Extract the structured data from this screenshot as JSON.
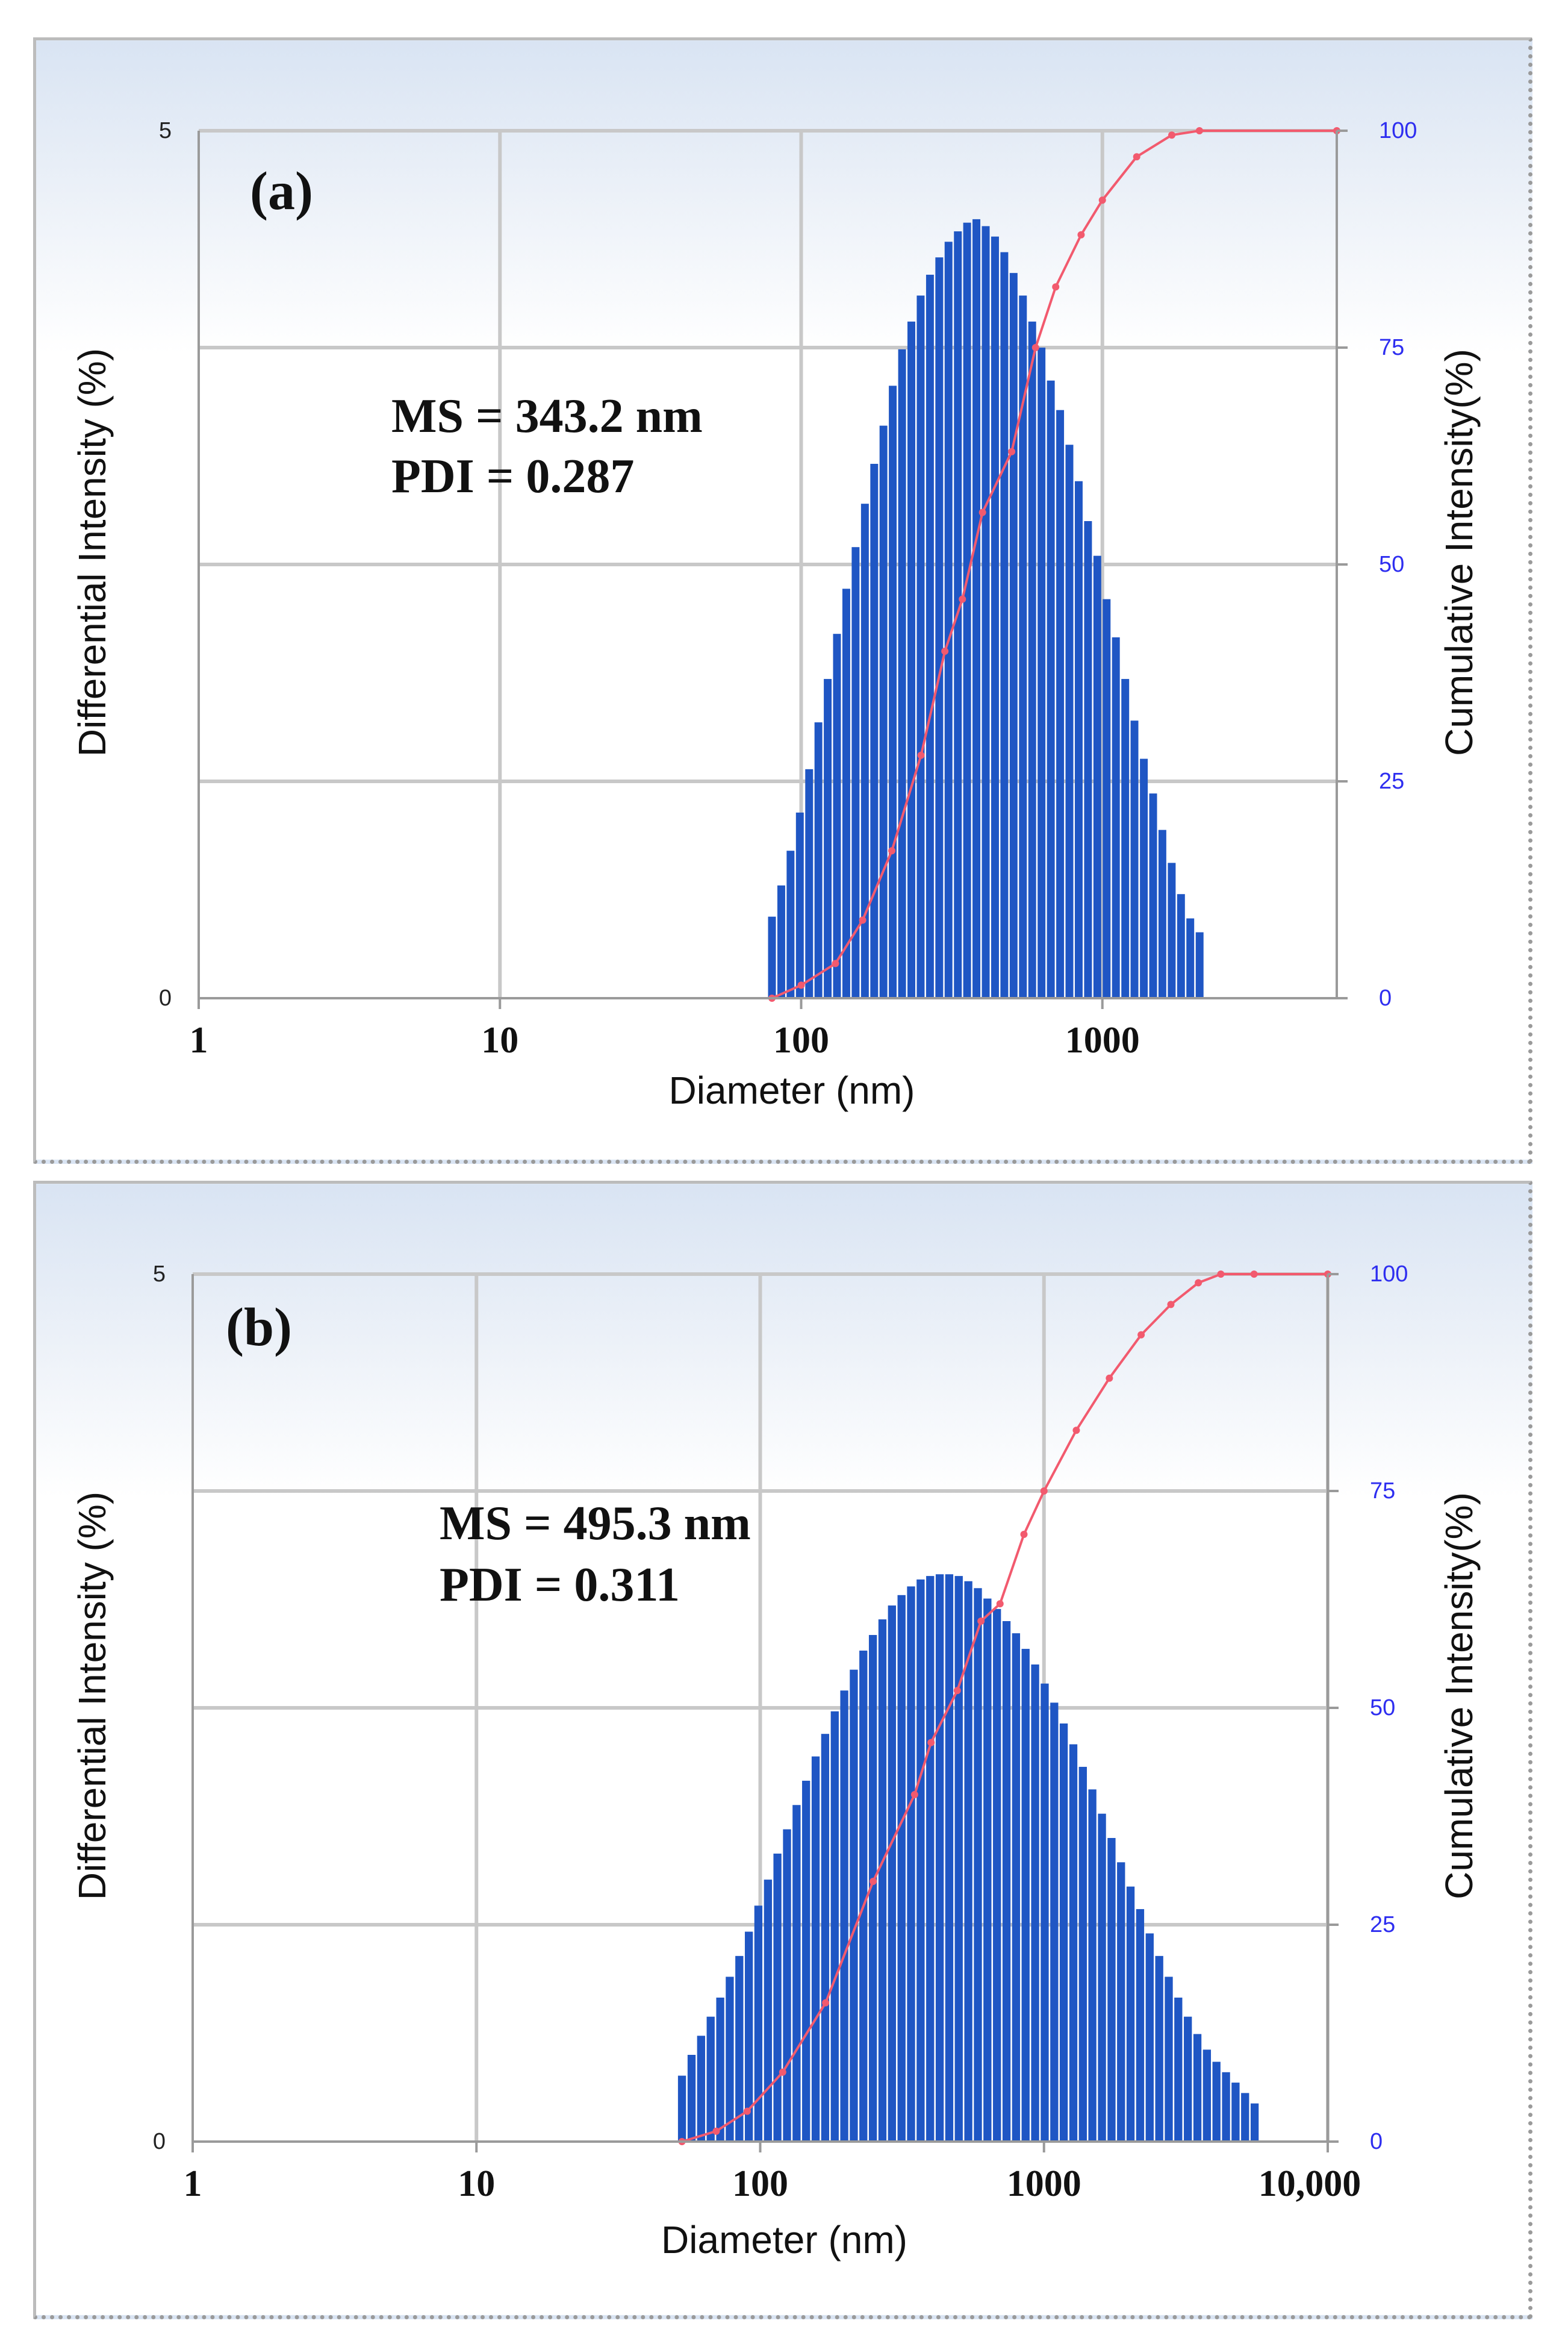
{
  "chart_data": [
    {
      "type": "bar",
      "panel_label": "(a)",
      "annotations": [
        "MS = 343.2 nm",
        "PDI = 0.287"
      ],
      "xlabel": "Diameter (nm)",
      "ylabel": "Differential Intensity (%)",
      "y2label": "Cumulative Intensity(%)",
      "xscale": "log",
      "xlim": [
        1,
        6000
      ],
      "xticks": [
        1,
        10,
        100,
        1000
      ],
      "xtick_labels": [
        "1",
        "10",
        "100",
        "1000"
      ],
      "ylim": [
        0,
        5
      ],
      "yticks": [
        0,
        5
      ],
      "ytick_labels": [
        "0",
        "5"
      ],
      "y2lim": [
        0,
        100
      ],
      "y2ticks": [
        0,
        25,
        50,
        75,
        100
      ],
      "y2tick_labels": [
        "0",
        "25",
        "50",
        "75",
        "100"
      ],
      "bar_series": {
        "name": "Differential Intensity (%)",
        "x": [
          80,
          85.9,
          92.2,
          99.0,
          106.3,
          114.1,
          122.5,
          131.5,
          141.2,
          151.6,
          162.8,
          174.8,
          187.6,
          201.4,
          216.3,
          232.2,
          249.3,
          267.7,
          287.4,
          308.5,
          331.3,
          355.6,
          381.8,
          410.0,
          440.2,
          472.6,
          507.4,
          544.8,
          584.9,
          628.0,
          674.3,
          724.0,
          777.3,
          834.6,
          896.1,
          962.1,
          1033,
          1109,
          1191,
          1278,
          1373,
          1474,
          1582,
          1699,
          1824,
          1958,
          2103
        ],
        "values": [
          0.47,
          0.65,
          0.85,
          1.07,
          1.32,
          1.59,
          1.84,
          2.1,
          2.36,
          2.6,
          2.85,
          3.08,
          3.3,
          3.53,
          3.74,
          3.9,
          4.05,
          4.17,
          4.27,
          4.36,
          4.42,
          4.47,
          4.49,
          4.45,
          4.39,
          4.3,
          4.18,
          4.05,
          3.9,
          3.75,
          3.56,
          3.39,
          3.19,
          2.98,
          2.75,
          2.55,
          2.3,
          2.08,
          1.84,
          1.6,
          1.38,
          1.18,
          0.97,
          0.78,
          0.6,
          0.46,
          0.38
        ]
      },
      "line_series": {
        "name": "Cumulative Intensity(%)",
        "x": [
          80,
          100,
          130,
          160,
          200,
          250,
          300,
          343,
          400,
          500,
          600,
          700,
          850,
          1000,
          1300,
          1700,
          2100,
          6000
        ],
        "values": [
          0,
          1.5,
          4,
          9,
          17,
          28,
          40,
          46,
          56,
          63,
          75,
          82,
          88,
          92,
          97,
          99.5,
          100,
          100
        ]
      }
    },
    {
      "type": "bar",
      "panel_label": "(b)",
      "annotations": [
        "MS = 495.3 nm",
        "PDI = 0.311"
      ],
      "xlabel": "Diameter (nm)",
      "ylabel": "Differential Intensity (%)",
      "y2label": "Cumulative Intensity(%)",
      "xscale": "log",
      "xlim": [
        1,
        10000
      ],
      "xticks": [
        1,
        10,
        100,
        1000,
        10000
      ],
      "xtick_labels": [
        "1",
        "10",
        "100",
        "1000",
        "10,000"
      ],
      "ylim": [
        0,
        5
      ],
      "yticks": [
        0,
        5
      ],
      "ytick_labels": [
        "0",
        "5"
      ],
      "y2lim": [
        0,
        100
      ],
      "y2ticks": [
        0,
        25,
        50,
        75,
        100
      ],
      "y2tick_labels": [
        "0",
        "25",
        "50",
        "75",
        "100"
      ],
      "bar_series": {
        "name": "Differential Intensity (%)",
        "x": [
          53,
          57.3,
          61.9,
          66.9,
          72.3,
          78.1,
          84.4,
          91.2,
          98.5,
          106.5,
          115.0,
          124.3,
          134.3,
          145.1,
          156.8,
          169.4,
          183.1,
          197.8,
          213.7,
          230.9,
          249.5,
          269.6,
          291.3,
          314.8,
          340.1,
          367.5,
          397.1,
          429.1,
          463.6,
          500.9,
          541.3,
          584.9,
          632.0,
          682.9,
          737.9,
          797.3,
          861.5,
          930.9,
          1006,
          1087,
          1174,
          1269,
          1371,
          1481,
          1601,
          1730,
          1869,
          2019,
          2182,
          2358,
          2548,
          2753,
          2974,
          3214,
          3473,
          3752,
          4054,
          4381,
          4733,
          5114,
          5526
        ],
        "values": [
          0.38,
          0.5,
          0.61,
          0.72,
          0.83,
          0.95,
          1.07,
          1.21,
          1.36,
          1.51,
          1.66,
          1.8,
          1.94,
          2.08,
          2.22,
          2.35,
          2.48,
          2.6,
          2.72,
          2.83,
          2.92,
          3.01,
          3.09,
          3.15,
          3.2,
          3.24,
          3.26,
          3.27,
          3.27,
          3.26,
          3.23,
          3.19,
          3.13,
          3.07,
          3.0,
          2.93,
          2.84,
          2.75,
          2.64,
          2.53,
          2.41,
          2.29,
          2.16,
          2.03,
          1.89,
          1.75,
          1.61,
          1.47,
          1.34,
          1.2,
          1.07,
          0.95,
          0.83,
          0.72,
          0.62,
          0.53,
          0.46,
          0.4,
          0.34,
          0.28,
          0.22
        ]
      },
      "line_series": {
        "name": "Cumulative Intensity(%)",
        "x": [
          53,
          70,
          90,
          120,
          170,
          250,
          350,
          400,
          495,
          600,
          700,
          850,
          1000,
          1300,
          1700,
          2200,
          2800,
          3500,
          4200,
          5500,
          10000
        ],
        "values": [
          0,
          1.2,
          3.5,
          8,
          16,
          30,
          40,
          46,
          52,
          60,
          62,
          70,
          75,
          82,
          88,
          93,
          96.5,
          99,
          100,
          100,
          100
        ]
      }
    }
  ]
}
